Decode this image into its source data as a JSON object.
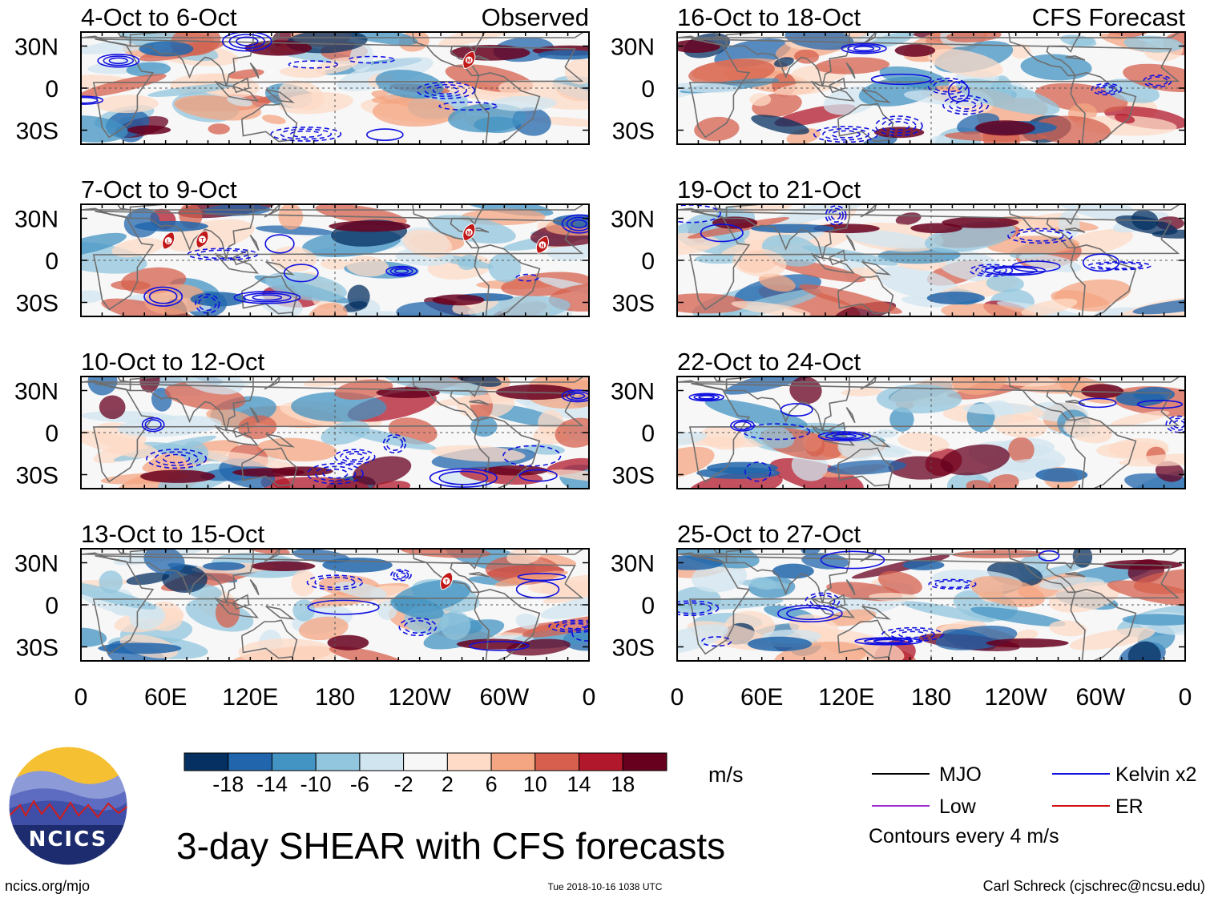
{
  "chart_data": {
    "type": "heatmap",
    "title": "3-day SHEAR with CFS forecasts",
    "units": "m/s",
    "observed_label": "Observed",
    "forecast_label": "CFS Forecast",
    "y_ticks": [
      "30N",
      "0",
      "30S"
    ],
    "x_ticks": [
      "0",
      "60E",
      "120E",
      "180",
      "120W",
      "60W",
      "0"
    ],
    "colorbar_levels": [
      "-18",
      "-14",
      "-10",
      "-6",
      "-2",
      "2",
      "6",
      "10",
      "14",
      "18"
    ],
    "colorbar_colors": [
      "#053061",
      "#2166ac",
      "#4393c3",
      "#92c5de",
      "#d1e5f0",
      "#f7f7f7",
      "#fddbc7",
      "#f4a582",
      "#d6604d",
      "#b2182b",
      "#67001f"
    ],
    "panels": [
      {
        "id": "obs-1",
        "label": "4-Oct to 6-Oct",
        "kind": "Observed",
        "storms": [
          {
            "letter": "M",
            "lon": 275,
            "lat": 20
          }
        ]
      },
      {
        "id": "fc-1",
        "label": "16-Oct to 18-Oct",
        "kind": "CFS Forecast",
        "storms": []
      },
      {
        "id": "obs-2",
        "label": "7-Oct to 9-Oct",
        "kind": "Observed",
        "storms": [
          {
            "letter": "L",
            "lon": 62,
            "lat": 14
          },
          {
            "letter": "T",
            "lon": 86,
            "lat": 15
          },
          {
            "letter": "M",
            "lon": 275,
            "lat": 20
          },
          {
            "letter": "N",
            "lon": 327,
            "lat": 11
          }
        ]
      },
      {
        "id": "fc-2",
        "label": "19-Oct to 21-Oct",
        "kind": "CFS Forecast",
        "storms": []
      },
      {
        "id": "obs-3",
        "label": "10-Oct to 12-Oct",
        "kind": "Observed",
        "storms": []
      },
      {
        "id": "fc-3",
        "label": "22-Oct to 24-Oct",
        "kind": "CFS Forecast",
        "storms": []
      },
      {
        "id": "obs-4",
        "label": "13-Oct to 15-Oct",
        "kind": "Observed",
        "storms": [
          {
            "letter": "T",
            "lon": 259,
            "lat": 17
          }
        ]
      },
      {
        "id": "fc-4",
        "label": "25-Oct to 27-Oct",
        "kind": "CFS Forecast",
        "storms": []
      }
    ],
    "legend": [
      {
        "name": "MJO",
        "color": "#000000"
      },
      {
        "name": "Kelvin x2",
        "color": "#1010e0"
      },
      {
        "name": "Low",
        "color": "#9b30d0"
      },
      {
        "name": "ER",
        "color": "#d01010"
      }
    ],
    "contour_note": "Contours every 4 m/s"
  },
  "footer": {
    "logo_text": "NCICS",
    "website": "ncics.org/mjo",
    "timestamp": "Tue 2018-10-16 1038 UTC",
    "author": "Carl Schreck (cjschrec@ncsu.edu)"
  }
}
